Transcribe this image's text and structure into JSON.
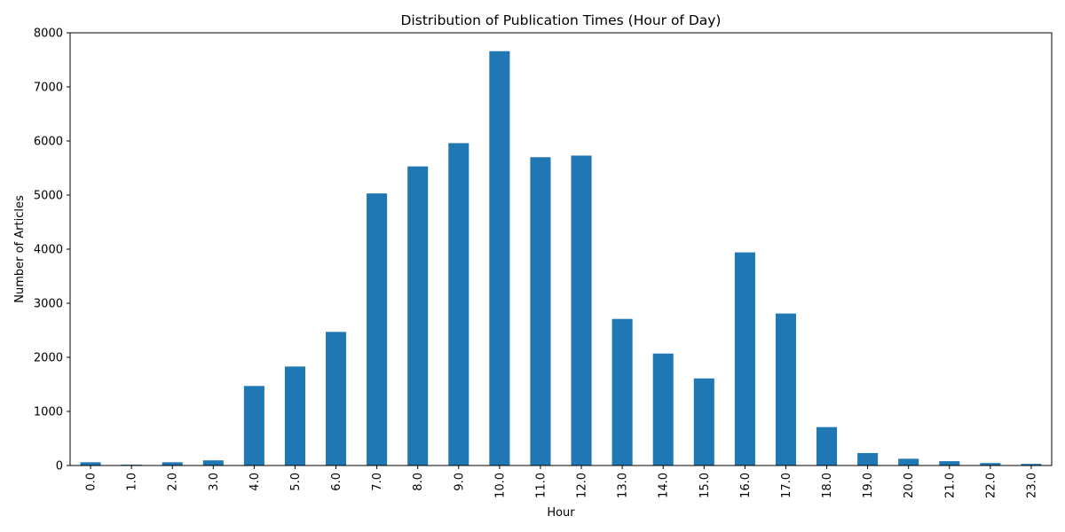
{
  "chart_data": {
    "type": "bar",
    "title": "Distribution of Publication Times (Hour of Day)",
    "xlabel": "Hour",
    "ylabel": "Number of Articles",
    "categories": [
      "0.0",
      "1.0",
      "2.0",
      "3.0",
      "4.0",
      "5.0",
      "6.0",
      "7.0",
      "8.0",
      "9.0",
      "10.0",
      "11.0",
      "12.0",
      "13.0",
      "14.0",
      "15.0",
      "16.0",
      "17.0",
      "18.0",
      "19.0",
      "20.0",
      "21.0",
      "22.0",
      "23.0"
    ],
    "values": [
      60,
      15,
      60,
      95,
      1470,
      1830,
      2470,
      5030,
      5530,
      5960,
      7660,
      5700,
      5730,
      2710,
      2070,
      1610,
      3940,
      2810,
      710,
      230,
      125,
      80,
      45,
      30
    ],
    "ylim": [
      0,
      8000
    ],
    "yticks": [
      0,
      1000,
      2000,
      3000,
      4000,
      5000,
      6000,
      7000,
      8000
    ],
    "bar_color": "#1f77b4",
    "grid": false,
    "legend": "none"
  }
}
